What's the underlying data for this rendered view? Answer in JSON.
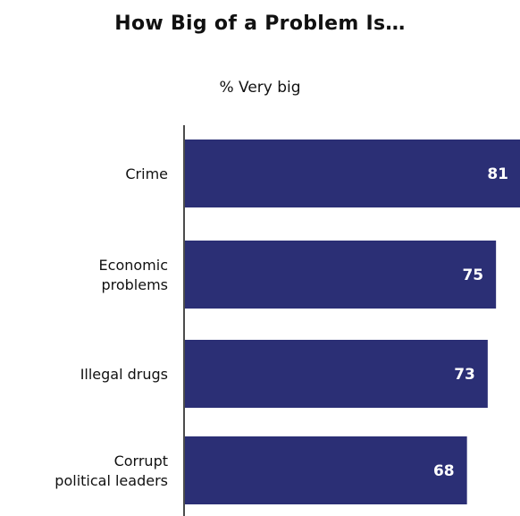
{
  "chart_data": {
    "type": "bar",
    "orientation": "horizontal",
    "title": "How Big of a Problem Is…",
    "subtitle": "% Very big",
    "categories": [
      [
        "Crime"
      ],
      [
        "Economic",
        "problems"
      ],
      [
        "Illegal drugs"
      ],
      [
        "Corrupt",
        "political leaders"
      ]
    ],
    "values": [
      81,
      75,
      73,
      68
    ],
    "value_labels": [
      "81",
      "75",
      "73",
      "68"
    ],
    "xlim": [
      0,
      81
    ],
    "bar_color": "#2b2f75",
    "value_label_color": "#ffffff",
    "grid": false
  }
}
